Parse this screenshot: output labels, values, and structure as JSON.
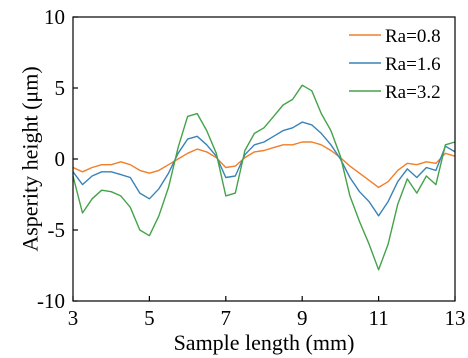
{
  "chart_data": {
    "type": "line",
    "title": "",
    "xlabel": "Sample length (mm)",
    "ylabel": "Asperity height (μm)",
    "xlim": [
      3,
      13
    ],
    "ylim": [
      -10,
      10
    ],
    "xticks": [
      3,
      5,
      7,
      9,
      11,
      13
    ],
    "yticks": [
      -10,
      -5,
      0,
      5,
      10
    ],
    "xtick_labels": [
      "3",
      "5",
      "7",
      "9",
      "11",
      "13"
    ],
    "ytick_labels": [
      "-10",
      "-5",
      "0",
      "5",
      "10"
    ],
    "grid": false,
    "legend_position": "top-right",
    "x": [
      3.0,
      3.25,
      3.5,
      3.75,
      4.0,
      4.25,
      4.5,
      4.75,
      5.0,
      5.25,
      5.5,
      5.75,
      6.0,
      6.25,
      6.5,
      6.75,
      7.0,
      7.25,
      7.5,
      7.75,
      8.0,
      8.25,
      8.5,
      8.75,
      9.0,
      9.25,
      9.5,
      9.75,
      10.0,
      10.25,
      10.5,
      10.75,
      11.0,
      11.25,
      11.5,
      11.75,
      12.0,
      12.25,
      12.5,
      12.75,
      13.0
    ],
    "series": [
      {
        "name": "Ra=0.8",
        "color": "#f07f2a",
        "values": [
          -0.6,
          -0.9,
          -0.6,
          -0.4,
          -0.4,
          -0.2,
          -0.4,
          -0.8,
          -1.0,
          -0.8,
          -0.4,
          0.0,
          0.4,
          0.7,
          0.5,
          0.1,
          -0.6,
          -0.5,
          0.1,
          0.5,
          0.6,
          0.8,
          1.0,
          1.0,
          1.2,
          1.2,
          1.0,
          0.6,
          0.1,
          -0.5,
          -1.0,
          -1.5,
          -2.0,
          -1.6,
          -0.8,
          -0.3,
          -0.4,
          -0.2,
          -0.3,
          0.4,
          0.2
        ]
      },
      {
        "name": "Ra=1.6",
        "color": "#3a83b8",
        "values": [
          -0.9,
          -1.8,
          -1.2,
          -0.9,
          -0.9,
          -1.1,
          -1.3,
          -2.4,
          -2.8,
          -2.1,
          -1.0,
          0.4,
          1.4,
          1.6,
          1.0,
          0.2,
          -1.3,
          -1.2,
          0.3,
          1.0,
          1.2,
          1.6,
          2.0,
          2.2,
          2.6,
          2.4,
          1.8,
          1.0,
          0.0,
          -1.3,
          -2.3,
          -3.0,
          -4.0,
          -3.0,
          -1.6,
          -0.7,
          -1.3,
          -0.6,
          -0.8,
          0.9,
          0.5
        ]
      },
      {
        "name": "Ra=3.2",
        "color": "#44a34a",
        "values": [
          -1.2,
          -3.8,
          -2.8,
          -2.2,
          -2.3,
          -2.6,
          -3.4,
          -5.0,
          -5.4,
          -4.0,
          -2.0,
          0.8,
          3.0,
          3.2,
          2.0,
          0.4,
          -2.6,
          -2.4,
          0.6,
          1.8,
          2.2,
          3.0,
          3.8,
          4.2,
          5.2,
          4.8,
          3.2,
          2.0,
          0.2,
          -2.6,
          -4.4,
          -6.0,
          -7.8,
          -6.0,
          -3.2,
          -1.4,
          -2.4,
          -1.2,
          -1.8,
          1.0,
          1.2
        ]
      }
    ]
  }
}
